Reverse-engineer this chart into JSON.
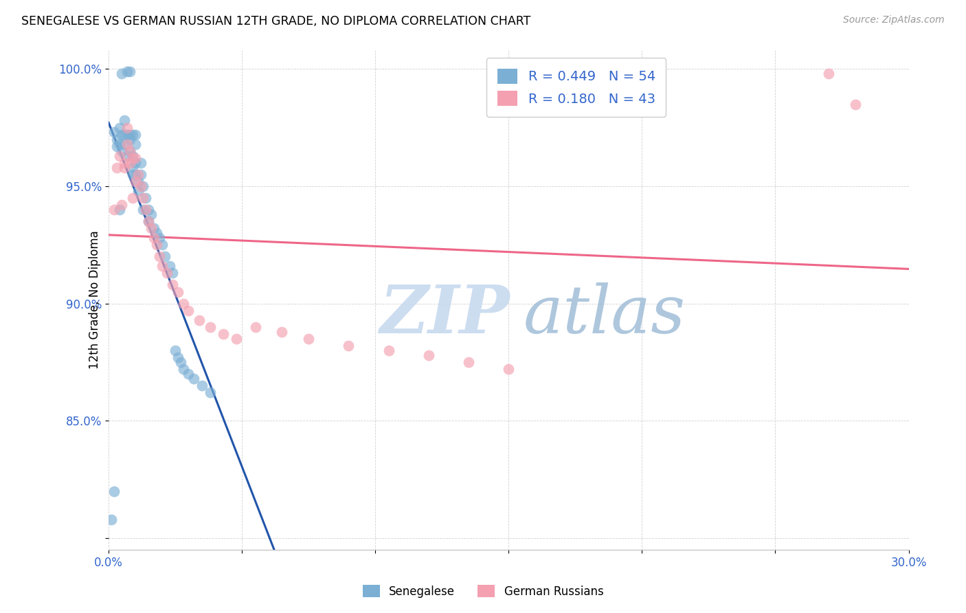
{
  "title": "SENEGALESE VS GERMAN RUSSIAN 12TH GRADE, NO DIPLOMA CORRELATION CHART",
  "source": "Source: ZipAtlas.com",
  "ylabel_label": "12th Grade, No Diploma",
  "legend_label1": "Senegalese",
  "legend_label2": "German Russians",
  "r1": 0.449,
  "n1": 54,
  "r2": 0.18,
  "n2": 43,
  "color1": "#7BAFD4",
  "color2": "#F4A0B0",
  "line_color1": "#2255AA",
  "line_color2": "#EE6688",
  "watermark_zip": "ZIP",
  "watermark_atlas": "atlas",
  "xlim": [
    0.0,
    0.3
  ],
  "ylim": [
    0.795,
    1.008
  ],
  "xtick_vals": [
    0.0,
    0.05,
    0.1,
    0.15,
    0.2,
    0.25,
    0.3
  ],
  "xtick_labels": [
    "0.0%",
    "",
    "",
    "",
    "",
    "",
    "30.0%"
  ],
  "ytick_vals": [
    0.8,
    0.85,
    0.9,
    0.95,
    1.0
  ],
  "ytick_labels": [
    "",
    "85.0%",
    "90.0%",
    "95.0%",
    "100.0%"
  ],
  "sen_x": [
    0.001,
    0.002,
    0.002,
    0.003,
    0.003,
    0.004,
    0.004,
    0.004,
    0.005,
    0.005,
    0.005,
    0.006,
    0.006,
    0.006,
    0.007,
    0.007,
    0.007,
    0.008,
    0.008,
    0.008,
    0.008,
    0.009,
    0.009,
    0.009,
    0.009,
    0.01,
    0.01,
    0.01,
    0.01,
    0.011,
    0.011,
    0.012,
    0.012,
    0.013,
    0.013,
    0.014,
    0.015,
    0.015,
    0.016,
    0.017,
    0.018,
    0.019,
    0.02,
    0.021,
    0.023,
    0.024,
    0.025,
    0.026,
    0.027,
    0.028,
    0.03,
    0.032,
    0.035,
    0.038
  ],
  "sen_y": [
    0.808,
    0.82,
    0.973,
    0.967,
    0.97,
    0.94,
    0.968,
    0.975,
    0.972,
    0.965,
    0.998,
    0.972,
    0.978,
    0.968,
    0.999,
    0.972,
    0.963,
    0.972,
    0.97,
    0.965,
    0.999,
    0.972,
    0.963,
    0.958,
    0.955,
    0.972,
    0.968,
    0.96,
    0.955,
    0.952,
    0.948,
    0.96,
    0.955,
    0.95,
    0.94,
    0.945,
    0.94,
    0.935,
    0.938,
    0.932,
    0.93,
    0.928,
    0.925,
    0.92,
    0.916,
    0.913,
    0.88,
    0.877,
    0.875,
    0.872,
    0.87,
    0.868,
    0.865,
    0.862
  ],
  "ger_x": [
    0.002,
    0.003,
    0.004,
    0.005,
    0.006,
    0.006,
    0.007,
    0.007,
    0.008,
    0.008,
    0.009,
    0.009,
    0.01,
    0.01,
    0.011,
    0.012,
    0.013,
    0.014,
    0.015,
    0.016,
    0.017,
    0.018,
    0.019,
    0.02,
    0.022,
    0.024,
    0.026,
    0.028,
    0.03,
    0.034,
    0.038,
    0.043,
    0.048,
    0.055,
    0.065,
    0.075,
    0.09,
    0.105,
    0.12,
    0.135,
    0.15,
    0.27,
    0.28
  ],
  "ger_y": [
    0.94,
    0.958,
    0.963,
    0.942,
    0.96,
    0.958,
    0.975,
    0.968,
    0.965,
    0.96,
    0.962,
    0.945,
    0.952,
    0.962,
    0.955,
    0.95,
    0.945,
    0.94,
    0.935,
    0.932,
    0.928,
    0.925,
    0.92,
    0.916,
    0.913,
    0.908,
    0.905,
    0.9,
    0.897,
    0.893,
    0.89,
    0.887,
    0.885,
    0.89,
    0.888,
    0.885,
    0.882,
    0.88,
    0.878,
    0.875,
    0.872,
    0.998,
    0.985
  ]
}
